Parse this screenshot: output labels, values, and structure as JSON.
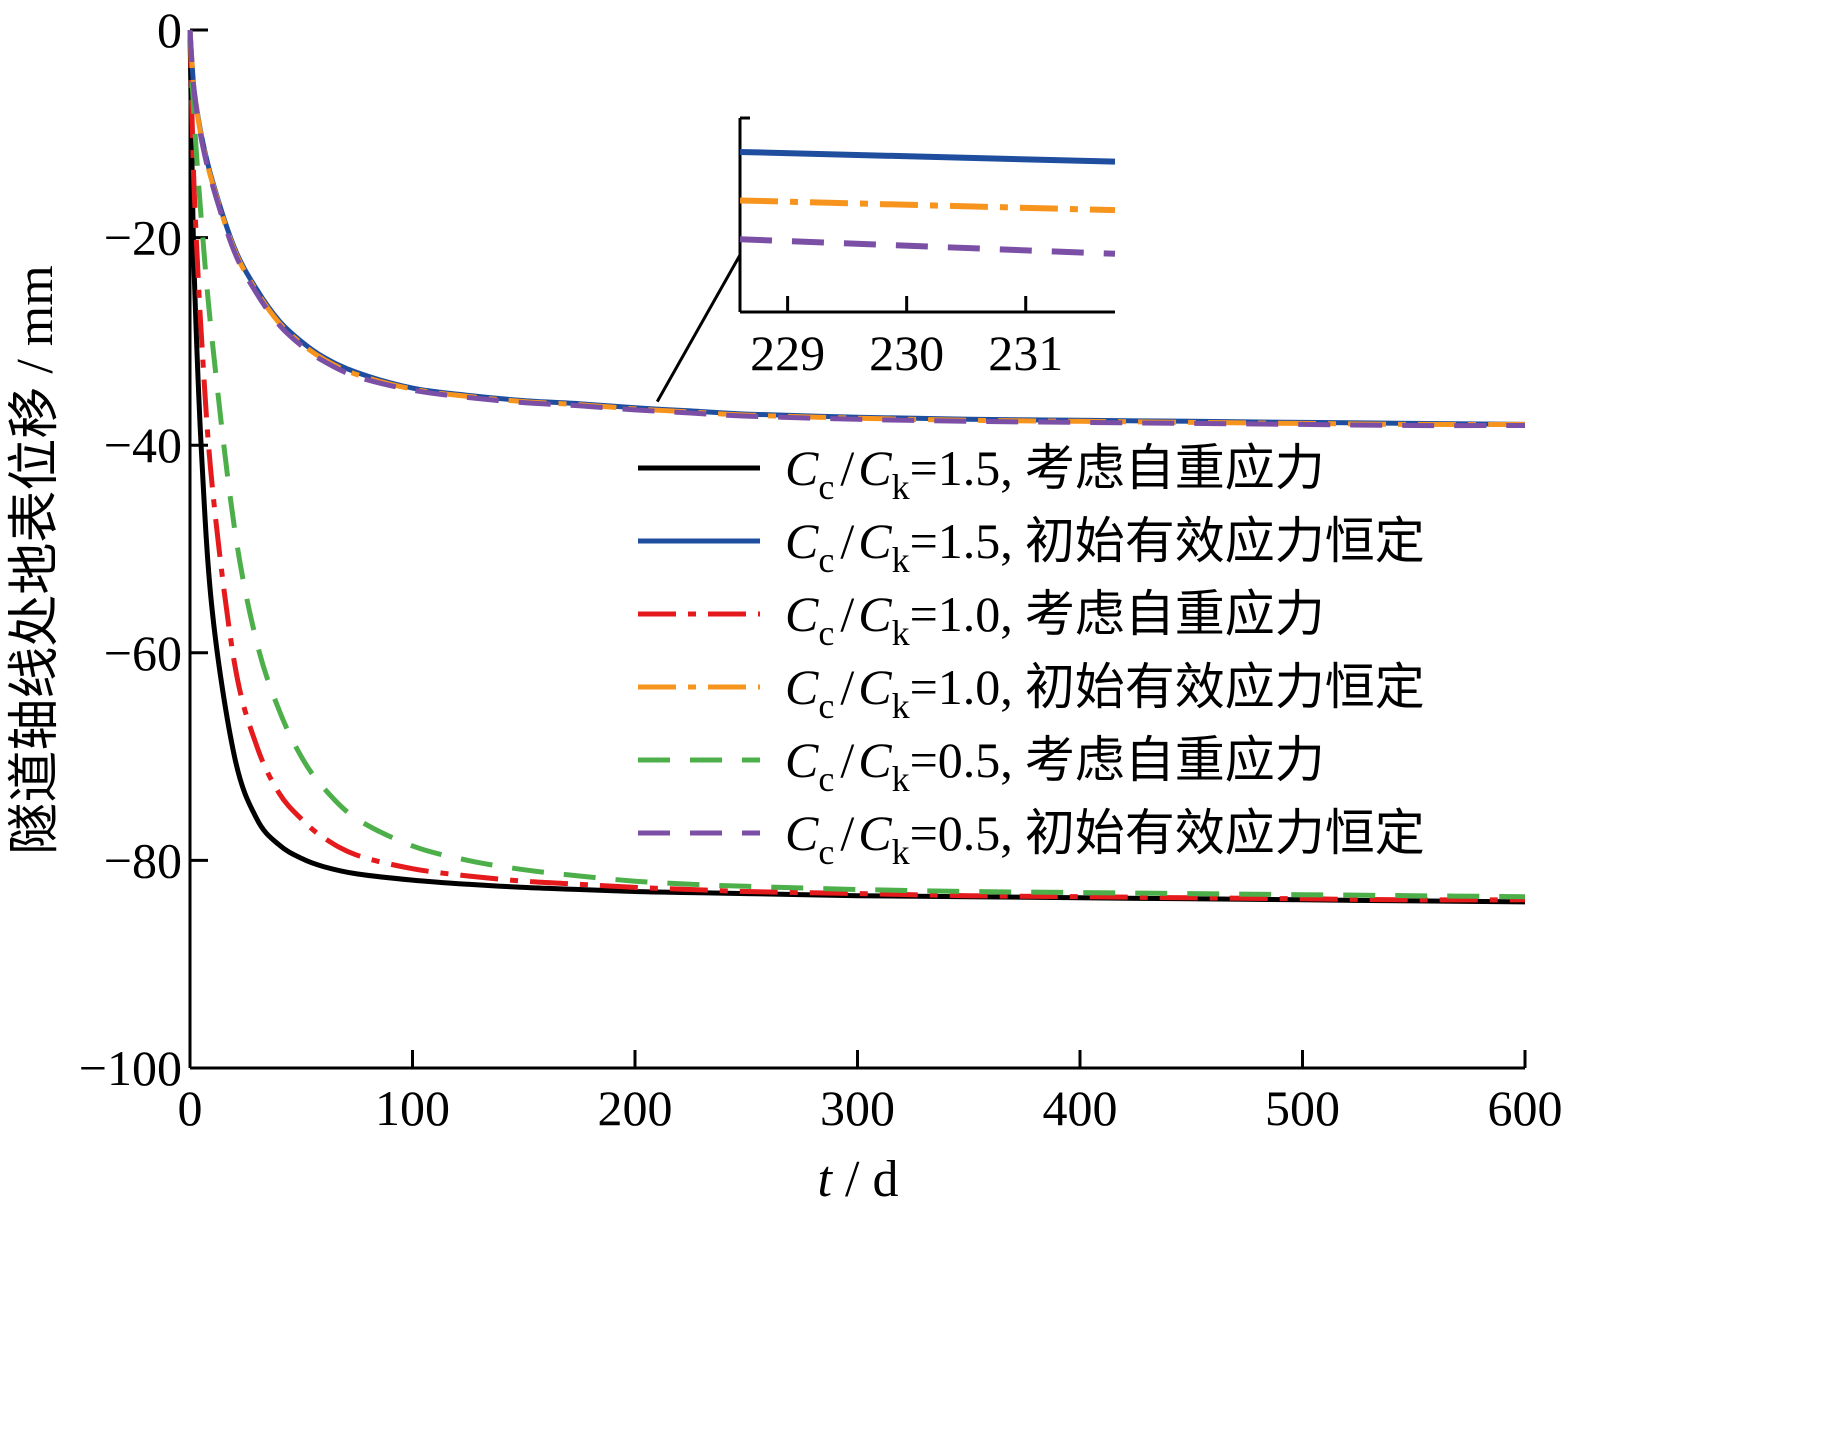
{
  "chart_data": {
    "type": "line",
    "xlabel": {
      "var": "t",
      "unit": "d"
    },
    "ylabel": "隧道轴线处地表位移",
    "ylabel_unit": "mm",
    "xlim": [
      0,
      600
    ],
    "ylim": [
      -100,
      0
    ],
    "x_ticks": [
      0,
      100,
      200,
      300,
      400,
      500,
      600
    ],
    "x_tick_labels": [
      "0",
      "100",
      "200",
      "300",
      "400",
      "500",
      "600"
    ],
    "y_ticks": [
      0,
      -20,
      -40,
      -60,
      -80,
      -100
    ],
    "y_tick_labels": [
      "0",
      "−20",
      "−40",
      "−60",
      "−80",
      "−100"
    ],
    "grid": false,
    "legend_position": "right",
    "x": [
      0,
      1,
      2,
      5,
      10,
      20,
      30,
      40,
      50,
      60,
      75,
      100,
      125,
      150,
      175,
      200,
      225,
      250,
      300,
      350,
      400,
      450,
      500,
      550,
      600
    ],
    "series": [
      {
        "name_prefix": "C",
        "name_sub1": "c",
        "name_mid": "/",
        "name_var2": "C",
        "name_sub2": "k",
        "name_value": "=1.5,",
        "name_text": "考虑自重应力",
        "color": "#000000",
        "dash": "solid",
        "values": [
          0,
          -14,
          -24,
          -40,
          -56,
          -70,
          -76,
          -78.5,
          -79.8,
          -80.6,
          -81.3,
          -81.9,
          -82.3,
          -82.6,
          -82.8,
          -83,
          -83.1,
          -83.2,
          -83.4,
          -83.5,
          -83.6,
          -83.7,
          -83.8,
          -83.9,
          -84
        ]
      },
      {
        "name_prefix": "C",
        "name_sub1": "c",
        "name_mid": "/",
        "name_var2": "C",
        "name_sub2": "k",
        "name_value": "=1.5,",
        "name_text": "初始有效应力恒定",
        "color": "#1f4e9f",
        "dash": "solid",
        "values": [
          0,
          -3.5,
          -6,
          -10,
          -14.5,
          -21,
          -25,
          -28,
          -30,
          -31.5,
          -33,
          -34.5,
          -35.2,
          -35.7,
          -36,
          -36.4,
          -36.7,
          -37,
          -37.3,
          -37.5,
          -37.6,
          -37.7,
          -37.8,
          -37.9,
          -38
        ]
      },
      {
        "name_prefix": "C",
        "name_sub1": "c",
        "name_mid": "/",
        "name_var2": "C",
        "name_sub2": "k",
        "name_value": "=1.0,",
        "name_text": "考虑自重应力",
        "color": "#e41a1c",
        "dash": "dashdot",
        "values": [
          0,
          -9,
          -16,
          -29,
          -44,
          -61,
          -69,
          -73.5,
          -76,
          -77.8,
          -79.5,
          -80.8,
          -81.5,
          -82,
          -82.3,
          -82.6,
          -82.8,
          -83,
          -83.2,
          -83.4,
          -83.5,
          -83.6,
          -83.7,
          -83.8,
          -83.8
        ]
      },
      {
        "name_prefix": "C",
        "name_sub1": "c",
        "name_mid": "/",
        "name_var2": "C",
        "name_sub2": "k",
        "name_value": "=1.0,",
        "name_text": "初始有效应力恒定",
        "color": "#f7941d",
        "dash": "dashdot",
        "values": [
          0,
          -3.6,
          -6.1,
          -10.2,
          -14.7,
          -21.2,
          -25.2,
          -28.2,
          -30.2,
          -31.7,
          -33.2,
          -34.6,
          -35.3,
          -35.8,
          -36.1,
          -36.5,
          -36.8,
          -37.1,
          -37.4,
          -37.6,
          -37.7,
          -37.8,
          -37.9,
          -38,
          -38
        ]
      },
      {
        "name_prefix": "C",
        "name_sub1": "c",
        "name_mid": "/",
        "name_var2": "C",
        "name_sub2": "k",
        "name_value": "=0.5,",
        "name_text": "考虑自重应力",
        "color": "#4daf4a",
        "dash": "dashed",
        "values": [
          0,
          -5,
          -9,
          -18,
          -30,
          -48,
          -59,
          -65.5,
          -70,
          -73,
          -76,
          -78.6,
          -80,
          -80.9,
          -81.5,
          -82,
          -82.3,
          -82.5,
          -82.8,
          -83,
          -83.1,
          -83.2,
          -83.3,
          -83.4,
          -83.5
        ]
      },
      {
        "name_prefix": "C",
        "name_sub1": "c",
        "name_mid": "/",
        "name_var2": "C",
        "name_sub2": "k",
        "name_value": "=0.5,",
        "name_text": "初始有效应力恒定",
        "color": "#7b4fa5",
        "dash": "dashed",
        "values": [
          0,
          -3.7,
          -6.2,
          -10.4,
          -14.9,
          -21.4,
          -25.4,
          -28.4,
          -30.4,
          -31.9,
          -33.4,
          -34.7,
          -35.4,
          -35.9,
          -36.2,
          -36.6,
          -36.9,
          -37.2,
          -37.5,
          -37.7,
          -37.8,
          -37.9,
          -38,
          -38.1,
          -38.1
        ]
      }
    ],
    "inset": {
      "x_ticks": [
        229,
        230,
        231
      ],
      "x_tick_labels": [
        "229",
        "230",
        "231"
      ],
      "xlim": [
        228.6,
        231.75
      ],
      "ylim": [
        -36.95,
        -36.55
      ],
      "zoom_point": {
        "x": 210,
        "y": -35.8
      },
      "series": [
        {
          "color": "#1f4e9f",
          "dash": "solid",
          "values": [
            -36.62,
            -36.64
          ]
        },
        {
          "color": "#f7941d",
          "dash": "dashdot",
          "values": [
            -36.72,
            -36.74
          ]
        },
        {
          "color": "#7b4fa5",
          "dash": "dashed",
          "values": [
            -36.8,
            -36.83
          ]
        }
      ]
    }
  }
}
